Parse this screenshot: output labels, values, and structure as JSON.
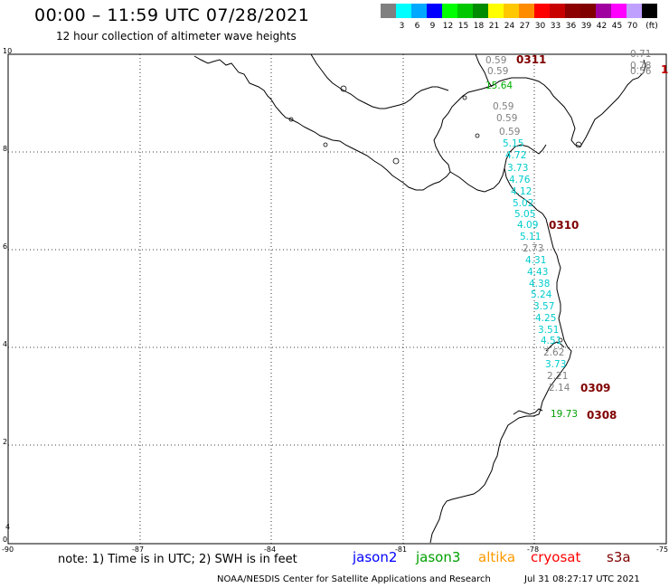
{
  "header": {
    "title": "00:00 – 11:59 UTC 07/28/2021",
    "subtitle": "12 hour collection of altimeter wave heights"
  },
  "color_scale": {
    "colors": [
      "#808080",
      "#00ffff",
      "#00a8ff",
      "#0000ff",
      "#00ff00",
      "#00c800",
      "#008c00",
      "#ffff00",
      "#ffc800",
      "#ff8c00",
      "#ff0000",
      "#c80000",
      "#8c0000",
      "#800000",
      "#a000a0",
      "#ff00ff",
      "#c0a0ff",
      "#000000"
    ],
    "labels": [
      "3",
      "6",
      "9",
      "12",
      "15",
      "18",
      "21",
      "24",
      "27",
      "30",
      "33",
      "36",
      "39",
      "42",
      "45",
      "70"
    ],
    "unit": "(ft)"
  },
  "map": {
    "lon_ticks": [
      "-90",
      "-87",
      "-84",
      "-81",
      "-78",
      "-75"
    ],
    "lat_ticks": [
      "0",
      "2",
      "4",
      "6",
      "8",
      "10"
    ],
    "extra_lat_tick": "4"
  },
  "passes": [
    {
      "id": "0311",
      "color": "#800000"
    },
    {
      "id": "0310",
      "color": "#800000"
    },
    {
      "id": "0309",
      "color": "#800000"
    },
    {
      "id": "0308",
      "color": "#800000"
    },
    {
      "id": "1",
      "color": "#c00000"
    }
  ],
  "wave_labels": [
    {
      "v": "0.59",
      "color": "#808080"
    },
    {
      "v": "0.59",
      "color": "#808080"
    },
    {
      "v": "15.64",
      "color": "#00b000"
    },
    {
      "v": "0.59",
      "color": "#808080"
    },
    {
      "v": "0.59",
      "color": "#808080"
    },
    {
      "v": "0.59",
      "color": "#808080"
    },
    {
      "v": "5.15",
      "color": "#00cccc"
    },
    {
      "v": "4.72",
      "color": "#00cccc"
    },
    {
      "v": "3.73",
      "color": "#00cccc"
    },
    {
      "v": "4.76",
      "color": "#00cccc"
    },
    {
      "v": "4.12",
      "color": "#00cccc"
    },
    {
      "v": "5.02",
      "color": "#00cccc"
    },
    {
      "v": "5.05",
      "color": "#00cccc"
    },
    {
      "v": "4.09",
      "color": "#00cccc"
    },
    {
      "v": "5.11",
      "color": "#00cccc"
    },
    {
      "v": "2.73",
      "color": "#808080"
    },
    {
      "v": "4.31",
      "color": "#00cccc"
    },
    {
      "v": "4.43",
      "color": "#00cccc"
    },
    {
      "v": "4.38",
      "color": "#00cccc"
    },
    {
      "v": "5.24",
      "color": "#00cccc"
    },
    {
      "v": "3.57",
      "color": "#00cccc"
    },
    {
      "v": "4.25",
      "color": "#00cccc"
    },
    {
      "v": "3.51",
      "color": "#00cccc"
    },
    {
      "v": "4.51",
      "color": "#00cccc"
    },
    {
      "v": "2.62",
      "color": "#808080"
    },
    {
      "v": "3.73",
      "color": "#00cccc"
    },
    {
      "v": "2.21",
      "color": "#808080"
    },
    {
      "v": "2.14",
      "color": "#808080"
    },
    {
      "v": "19.73",
      "color": "#00a000"
    },
    {
      "v": "0.71",
      "color": "#808080"
    },
    {
      "v": "0.78",
      "color": "#808080"
    },
    {
      "v": "0.56",
      "color": "#808080"
    }
  ],
  "footer": {
    "note": "note: 1) Time is in UTC; 2) SWH is in feet",
    "satellites": [
      {
        "name": "jason2",
        "color": "#0000ff"
      },
      {
        "name": "jason3",
        "color": "#00a000"
      },
      {
        "name": "altika",
        "color": "#ff9900"
      },
      {
        "name": "cryosat",
        "color": "#ff0000"
      },
      {
        "name": "s3a",
        "color": "#800000"
      }
    ],
    "credit": "NOAA/NESDIS Center for Satellite Applications and Research",
    "timestamp": "Jul 31 08:27:17 UTC 2021"
  }
}
